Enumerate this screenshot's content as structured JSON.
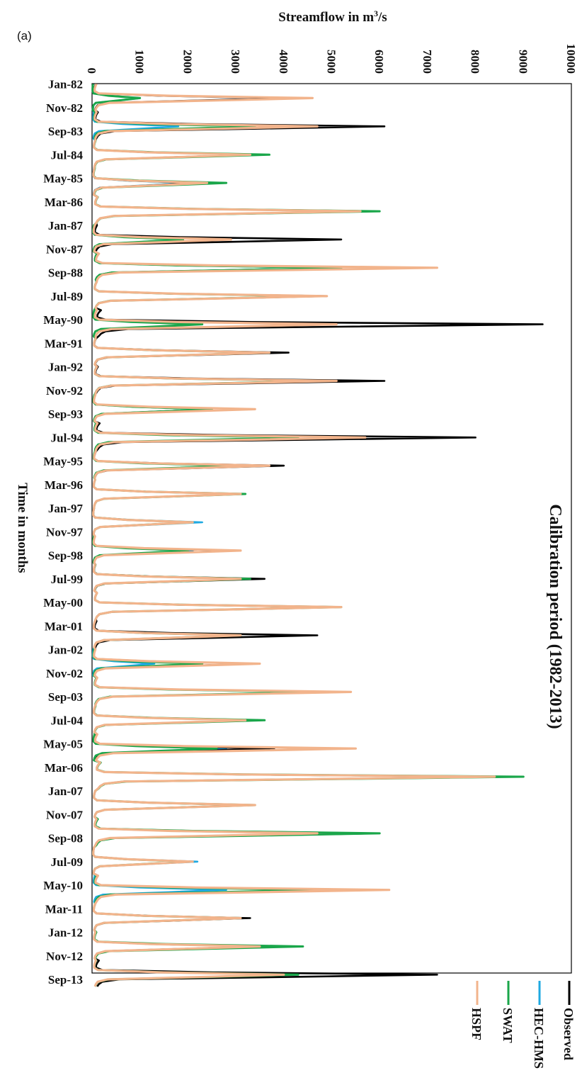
{
  "panel_label": "(a)",
  "chart_data": {
    "type": "line",
    "orientation": "time on vertical axis (rotated 90° clockwise)",
    "title": "Calibration period (1982-2013)",
    "xlabel": "Time in months",
    "ylabel": "Streamflow in m³/s",
    "ylabel_main": "Streamflow in m",
    "ylabel_sup": "3",
    "ylabel_tail": "/s",
    "ylim": [
      0,
      10000
    ],
    "value_ticks": [
      "0",
      "1000",
      "2000",
      "3000",
      "4000",
      "5000",
      "6000",
      "7000",
      "8000",
      "9000",
      "10000"
    ],
    "time_ticks": [
      "Jan-82",
      "Nov-82",
      "Sep-83",
      "Jul-84",
      "May-85",
      "Mar-86",
      "Jan-87",
      "Nov-87",
      "Sep-88",
      "Jul-89",
      "May-90",
      "Mar-91",
      "Jan-92",
      "Nov-92",
      "Sep-93",
      "Jul-94",
      "May-95",
      "Mar-96",
      "Jan-97",
      "Nov-97",
      "Sep-98",
      "Jul-99",
      "May-00",
      "Mar-01",
      "Jan-02",
      "Nov-02",
      "Sep-03",
      "Jul-04",
      "May-05",
      "Mar-06",
      "Jan-07",
      "Nov-07",
      "Sep-08",
      "Jul-09",
      "May-10",
      "Mar-11",
      "Jan-12",
      "Nov-12",
      "Sep-13"
    ],
    "grid": false,
    "legend_position": "bottom-right (rotated)",
    "months_start": "Jan-1982",
    "months_count": 384,
    "annual_peaks": {
      "years": [
        1982,
        1983,
        1984,
        1985,
        1986,
        1987,
        1988,
        1989,
        1990,
        1991,
        1992,
        1993,
        1994,
        1995,
        1996,
        1997,
        1998,
        1999,
        2000,
        2001,
        2002,
        2003,
        2004,
        2005,
        2006,
        2007,
        2008,
        2009,
        2010,
        2011,
        2012,
        2013
      ],
      "peak_month_index": [
        6,
        6,
        6,
        6,
        6,
        6,
        6,
        6,
        6,
        6,
        6,
        6,
        6,
        6,
        6,
        6,
        6,
        6,
        6,
        6,
        6,
        6,
        6,
        6,
        6,
        6,
        6,
        6,
        6,
        6,
        6,
        6
      ]
    },
    "series": [
      {
        "name": "Observed",
        "color": "#000000",
        "annual_peaks": [
          4000,
          6100,
          3300,
          2200,
          5900,
          5200,
          5200,
          4900,
          9400,
          4100,
          6100,
          2500,
          8000,
          4000,
          3100,
          2100,
          2900,
          3600,
          5200,
          4700,
          3400,
          5200,
          3500,
          3800,
          8400,
          3300,
          5900,
          2100,
          5700,
          3300,
          3500,
          7200
        ]
      },
      {
        "name": "HEC-HMS",
        "color": "#1fa9e1",
        "annual_peaks": [
          1000,
          1800,
          3300,
          2000,
          5600,
          1900,
          5100,
          4700,
          5100,
          3700,
          4800,
          2500,
          5500,
          3100,
          3200,
          2300,
          2100,
          3100,
          5200,
          3100,
          1300,
          4700,
          3200,
          2800,
          8300,
          3400,
          4700,
          2200,
          2800,
          3100,
          3500,
          4300
        ]
      },
      {
        "name": "SWAT",
        "color": "#1aa64a",
        "annual_peaks": [
          1000,
          3400,
          3700,
          2800,
          6000,
          1900,
          5200,
          4700,
          2300,
          3700,
          4900,
          2500,
          4300,
          3000,
          3200,
          2100,
          2000,
          3300,
          5200,
          3100,
          2300,
          4700,
          3600,
          2600,
          9000,
          3400,
          6000,
          2000,
          4700,
          3100,
          4400,
          4300
        ]
      },
      {
        "name": "HSPF",
        "color": "#f2b48c",
        "annual_peaks": [
          4600,
          4700,
          3300,
          2400,
          5600,
          2900,
          7200,
          4900,
          5100,
          3700,
          5100,
          3400,
          5700,
          3700,
          3100,
          2100,
          3100,
          3100,
          5200,
          3100,
          3500,
          5400,
          3200,
          5500,
          8400,
          3400,
          4700,
          2100,
          6200,
          3100,
          3500,
          4000
        ]
      }
    ]
  }
}
